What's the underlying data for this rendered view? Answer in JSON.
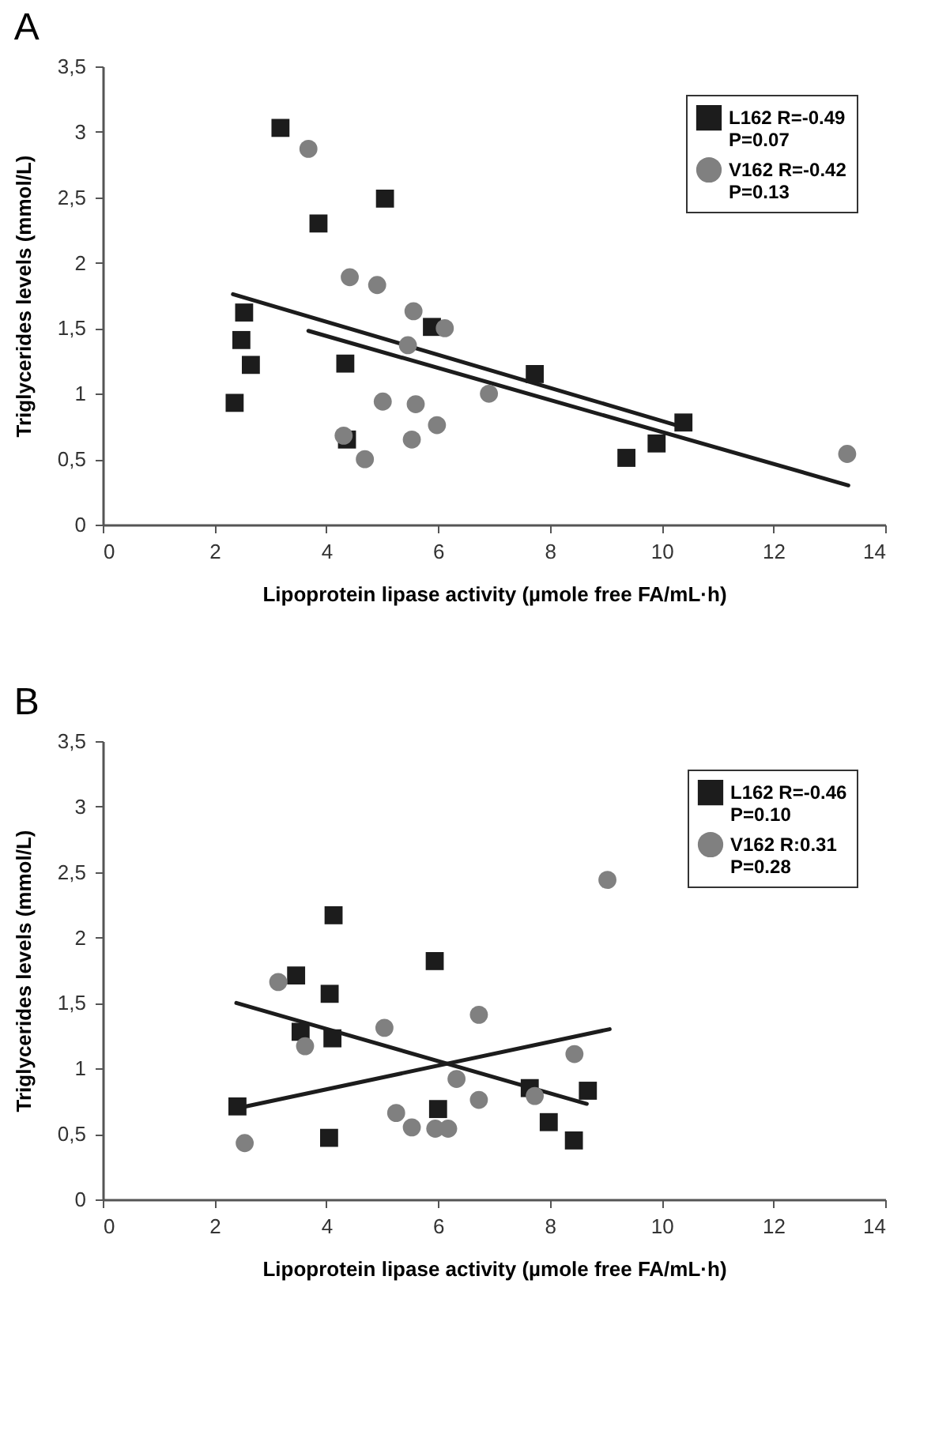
{
  "chart_data": [
    {
      "type": "scatter",
      "title": "A",
      "xlabel": "Lipoprotein lipase activity (µmole free FA/mL·h)",
      "ylabel": "Triglycerides levels (mmol/L)",
      "xlim": [
        0,
        14
      ],
      "xticks": [
        0,
        2,
        4,
        6,
        8,
        10,
        12,
        14
      ],
      "ylim": [
        0,
        3.5
      ],
      "yticks": [
        0,
        {
          "value": 0.5,
          "label": "0,5"
        },
        1,
        {
          "value": 1.5,
          "label": "1,5"
        },
        2,
        {
          "value": 2.5,
          "label": "2,5"
        },
        3,
        {
          "value": 3.5,
          "label": "3,5"
        }
      ],
      "grid": false,
      "legend": "top right",
      "series": [
        {
          "name": "L162 R=-0.49 P=0.07",
          "color": "#1c1c1c",
          "marker": "square",
          "x": [
            3.18,
            5.05,
            3.86,
            2.53,
            2.48,
            2.65,
            2.36,
            4.34,
            4.37,
            5.89,
            7.73,
            10.39,
            9.91,
            9.37
          ],
          "values": [
            3.03,
            2.49,
            2.3,
            1.62,
            1.41,
            1.22,
            0.93,
            1.23,
            0.65,
            1.51,
            1.15,
            0.78,
            0.62,
            0.51
          ]
        },
        {
          "name": "V162 R=-0.42 P=0.13",
          "color": "#808080",
          "marker": "circle",
          "x": [
            3.68,
            4.42,
            4.91,
            5.56,
            6.12,
            5.46,
            5.01,
            5.6,
            5.98,
            6.91,
            4.31,
            5.53,
            4.69,
            13.32
          ],
          "values": [
            2.87,
            1.89,
            1.83,
            1.63,
            1.5,
            1.37,
            0.94,
            0.92,
            0.76,
            1.0,
            0.68,
            0.65,
            0.5,
            0.54
          ]
        },
        {
          "type": "line",
          "color": "#1c1c1c",
          "marker": "none",
          "line_style": "solid",
          "x": [
            2.33,
            10.26
          ],
          "values": [
            1.76,
            0.76
          ]
        },
        {
          "type": "line",
          "color": "#1c1c1c",
          "marker": "none",
          "line_style": "solid",
          "x": [
            3.68,
            13.34
          ],
          "values": [
            1.48,
            0.3
          ]
        }
      ]
    },
    {
      "type": "scatter",
      "title": "B",
      "xlabel": "Lipoprotein lipase activity (µmole free FA/mL·h)",
      "ylabel": "Triglycerides levels (mmol/L)",
      "xlim": [
        0,
        14
      ],
      "xticks": [
        0,
        2,
        4,
        6,
        8,
        10,
        12,
        14
      ],
      "ylim": [
        0,
        3.5
      ],
      "yticks": [
        0,
        {
          "value": 0.5,
          "label": "0,5"
        },
        1,
        {
          "value": 1.5,
          "label": "1,5"
        },
        2,
        {
          "value": 2.5,
          "label": "2,5"
        },
        3,
        {
          "value": 3.5,
          "label": "3,5"
        }
      ],
      "grid": false,
      "legend": "top right",
      "series": [
        {
          "name": "L162 R=-0.46 P=0.10",
          "color": "#1c1c1c",
          "marker": "square",
          "x": [
            4.13,
            5.94,
            3.46,
            4.06,
            3.54,
            4.11,
            2.41,
            4.05,
            6.0,
            7.64,
            8.68,
            7.98,
            8.43
          ],
          "values": [
            2.17,
            1.82,
            1.71,
            1.57,
            1.28,
            1.23,
            0.71,
            0.47,
            0.69,
            0.85,
            0.83,
            0.59,
            0.45
          ]
        },
        {
          "name": "V162 R:0.31 P=0.28",
          "color": "#808080",
          "marker": "circle",
          "x": [
            9.03,
            3.14,
            3.62,
            5.04,
            6.73,
            8.44,
            6.33,
            6.73,
            7.73,
            5.25,
            5.53,
            5.95,
            6.18,
            2.54
          ],
          "values": [
            2.44,
            1.66,
            1.17,
            1.31,
            1.41,
            1.11,
            0.92,
            0.76,
            0.79,
            0.66,
            0.55,
            0.54,
            0.54,
            0.43
          ]
        },
        {
          "type": "line",
          "color": "#1c1c1c",
          "marker": "none",
          "line_style": "solid",
          "x": [
            2.39,
            8.66
          ],
          "values": [
            1.5,
            0.73
          ]
        },
        {
          "type": "line",
          "color": "#1c1c1c",
          "marker": "none",
          "line_style": "solid",
          "x": [
            2.45,
            9.07
          ],
          "values": [
            0.7,
            1.3
          ]
        }
      ]
    }
  ]
}
